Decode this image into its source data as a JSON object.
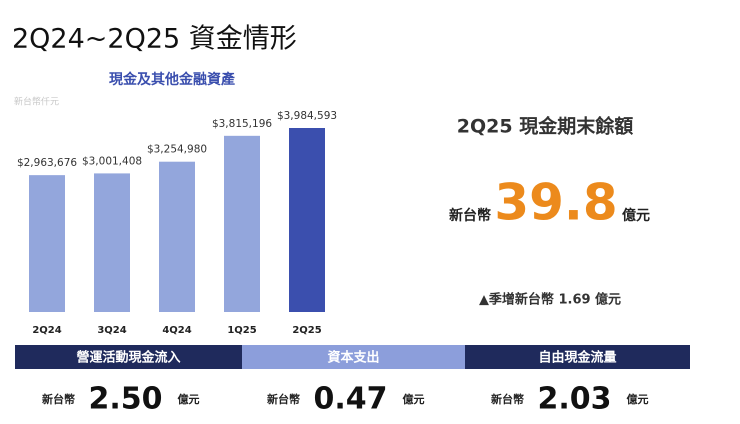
{
  "page_title": "2Q24~2Q25 資金情形",
  "chart_data": {
    "type": "bar",
    "title": "現金及其他金融資產",
    "subtitle": "新台幣仟元",
    "categories": [
      "2Q24",
      "3Q24",
      "4Q24",
      "1Q25",
      "2Q25"
    ],
    "values": [
      2963676,
      3001408,
      3254980,
      3815196,
      3984593
    ],
    "value_labels": [
      "$2,963,676",
      "$3,001,408",
      "$3,254,980",
      "$3,815,196",
      "$3,984,593"
    ],
    "colors": [
      "#93a6dc",
      "#93a6dc",
      "#93a6dc",
      "#93a6dc",
      "#3b4fae"
    ]
  },
  "highlight": {
    "heading": "2Q25 現金期末餘額",
    "prefix": "新台幣",
    "value": "39.8",
    "unit": "億元",
    "note": "▲季增新台幣 1.69 億元"
  },
  "boxes": [
    {
      "header": "營運活動現金流入",
      "prefix": "新台幣",
      "value": "2.50",
      "unit": "億元"
    },
    {
      "header": "資本支出",
      "prefix": "新台幣",
      "value": "0.47",
      "unit": "億元"
    },
    {
      "header": "自由現金流量",
      "prefix": "新台幣",
      "value": "2.03",
      "unit": "億元"
    }
  ]
}
